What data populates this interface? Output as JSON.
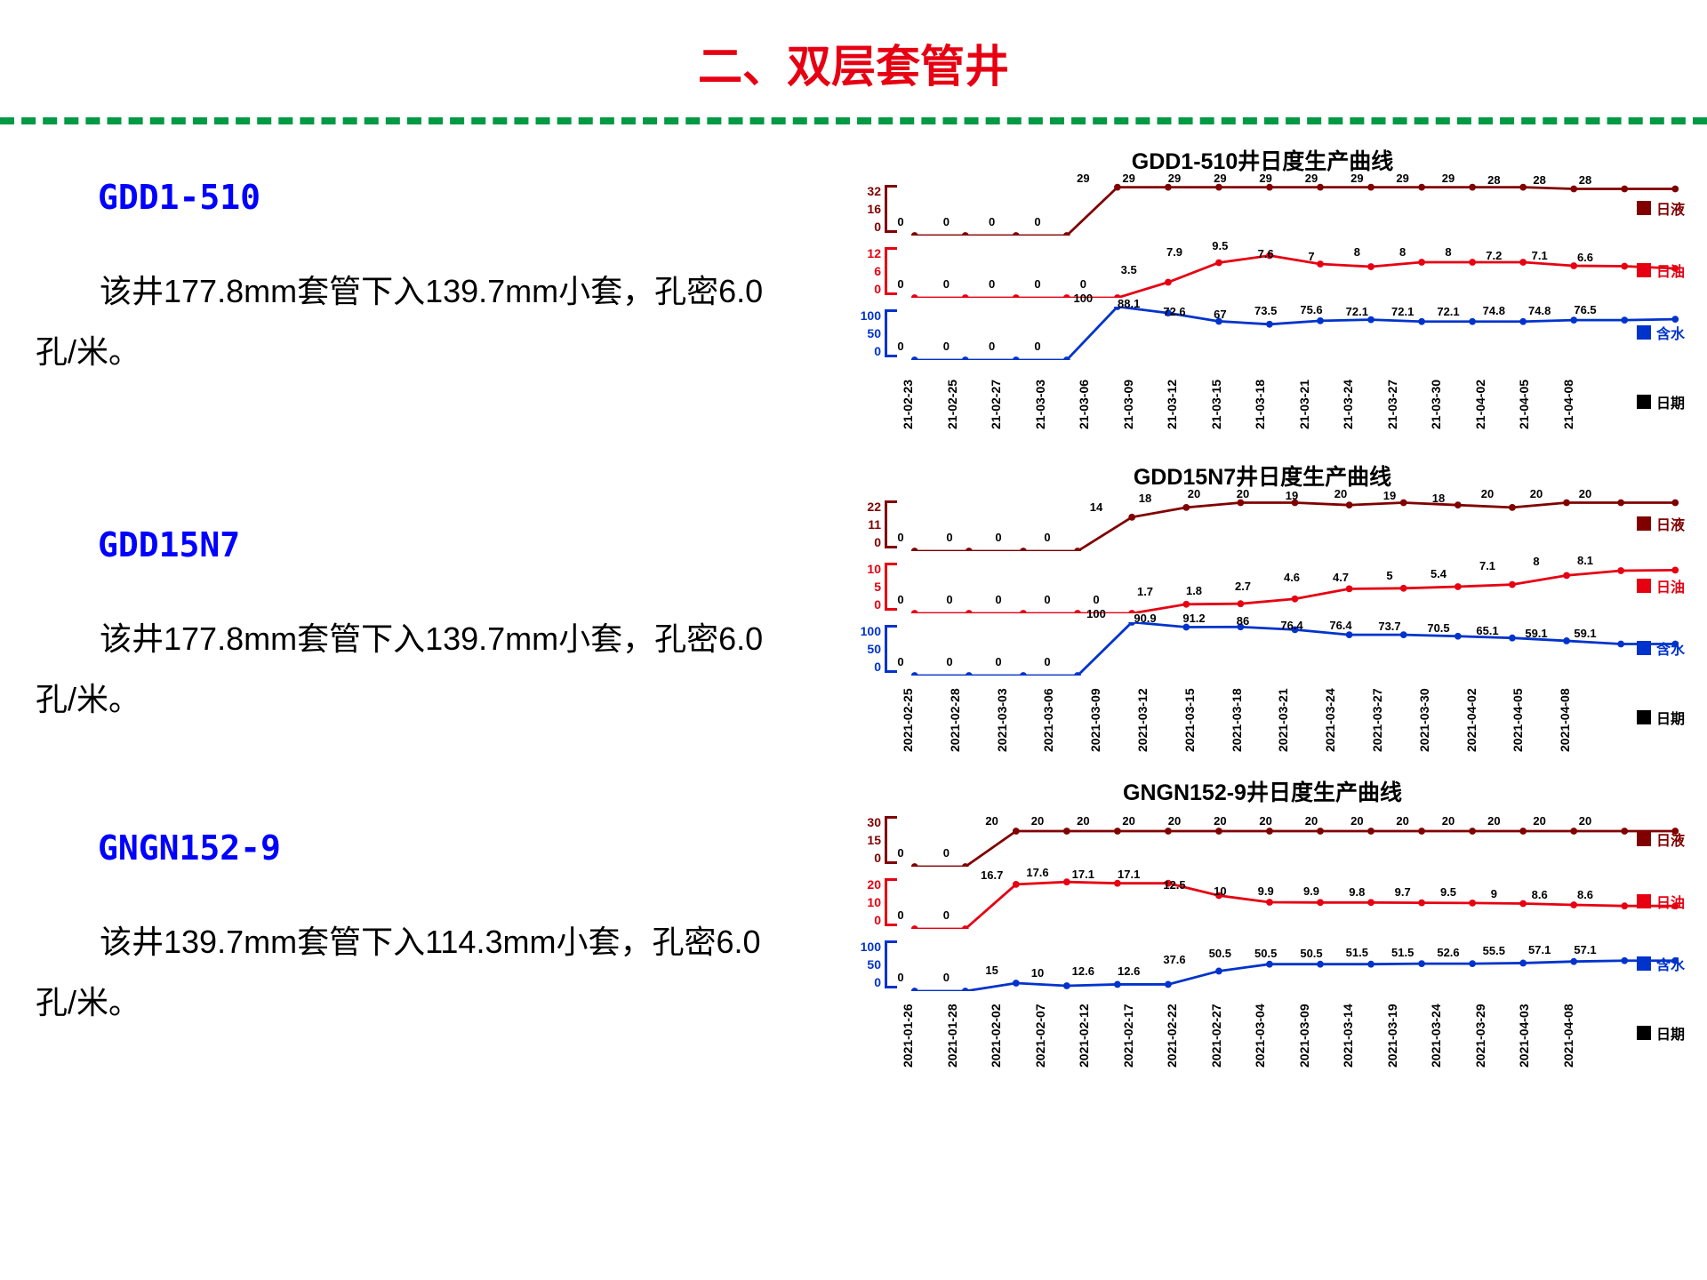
{
  "page": {
    "title": "二、双层套管井",
    "title_color": "#e60012",
    "divider_color": "#009944"
  },
  "wells": [
    {
      "id": "GDD1-510",
      "desc": "该井177.8mm套管下入139.7mm小套，孔密6.0孔/米。"
    },
    {
      "id": "GDD15N7",
      "desc": "该井177.8mm套管下入139.7mm小套，孔密6.0孔/米。"
    },
    {
      "id": "GNGN152-9",
      "desc": "该井139.7mm套管下入114.3mm小套，孔密6.0孔/米。"
    }
  ],
  "legend": {
    "liquid": "日液",
    "oil": "日油",
    "water": "含水",
    "date": "日期"
  },
  "colors": {
    "liquid": "#800000",
    "oil": "#e60012",
    "water": "#0033cc",
    "date": "#000000",
    "well_id": "#0000ff"
  },
  "charts": [
    {
      "title": "GDD1-510井日度生产曲线",
      "dates": [
        "21-02-23",
        "21-02-25",
        "21-02-27",
        "21-03-03",
        "21-03-06",
        "21-03-09",
        "21-03-12",
        "21-03-15",
        "21-03-18",
        "21-03-21",
        "21-03-24",
        "21-03-27",
        "21-03-30",
        "21-04-02",
        "21-04-05",
        "21-04-08"
      ],
      "series": [
        {
          "name": "日液",
          "color": "#800000",
          "ylim": [
            0,
            32
          ],
          "yticks": [
            0,
            16,
            32
          ],
          "values": [
            0,
            0,
            0,
            0,
            29,
            29,
            29,
            29,
            29,
            29,
            29,
            29,
            29,
            28,
            28,
            28
          ]
        },
        {
          "name": "日油",
          "color": "#e60012",
          "ylim": [
            0,
            12
          ],
          "yticks": [
            0,
            6,
            12
          ],
          "values": [
            0,
            0,
            0,
            0,
            0,
            3.5,
            7.9,
            9.5,
            7.6,
            7,
            8,
            8,
            8,
            7.2,
            7.1,
            6.6
          ]
        },
        {
          "name": "含水",
          "color": "#0033cc",
          "ylim": [
            0,
            100
          ],
          "yticks": [
            0,
            50,
            100
          ],
          "values": [
            0,
            0,
            0,
            0,
            100,
            88.1,
            72.6,
            67,
            73.5,
            75.6,
            72.1,
            72.1,
            72.1,
            74.8,
            74.8,
            76.5
          ]
        }
      ]
    },
    {
      "title": "GDD15N7井日度生产曲线",
      "dates": [
        "2021-02-25",
        "2021-02-28",
        "2021-03-03",
        "2021-03-06",
        "2021-03-09",
        "2021-03-12",
        "2021-03-15",
        "2021-03-18",
        "2021-03-21",
        "2021-03-24",
        "2021-03-27",
        "2021-03-30",
        "2021-04-02",
        "2021-04-05",
        "2021-04-08"
      ],
      "series": [
        {
          "name": "日液",
          "color": "#800000",
          "ylim": [
            0,
            22
          ],
          "yticks": [
            0,
            11,
            22
          ],
          "values": [
            0,
            0,
            0,
            0,
            14,
            18,
            20,
            20,
            19,
            20,
            19,
            18,
            20,
            20,
            20
          ]
        },
        {
          "name": "日油",
          "color": "#e60012",
          "ylim": [
            0,
            10
          ],
          "yticks": [
            0,
            5,
            10
          ],
          "values": [
            0,
            0,
            0,
            0,
            0,
            1.7,
            1.8,
            2.7,
            4.6,
            4.7,
            5,
            5.4,
            7.1,
            8,
            8.1
          ]
        },
        {
          "name": "含水",
          "color": "#0033cc",
          "ylim": [
            0,
            100
          ],
          "yticks": [
            0,
            50,
            100
          ],
          "values": [
            0,
            0,
            0,
            0,
            100,
            90.9,
            91.2,
            86,
            76.4,
            76.4,
            73.7,
            70.5,
            65.1,
            59.1,
            59.1
          ]
        }
      ]
    },
    {
      "title": "GNGN152-9井日度生产曲线",
      "dates": [
        "2021-01-26",
        "2021-01-28",
        "2021-02-02",
        "2021-02-07",
        "2021-02-12",
        "2021-02-17",
        "2021-02-22",
        "2021-02-27",
        "2021-03-04",
        "2021-03-09",
        "2021-03-14",
        "2021-03-19",
        "2021-03-24",
        "2021-03-29",
        "2021-04-03",
        "2021-04-08"
      ],
      "series": [
        {
          "name": "日液",
          "color": "#800000",
          "ylim": [
            0,
            30
          ],
          "yticks": [
            0,
            15,
            30
          ],
          "values": [
            0,
            0,
            20,
            20,
            20,
            20,
            20,
            20,
            20,
            20,
            20,
            20,
            20,
            20,
            20,
            20
          ]
        },
        {
          "name": "日油",
          "color": "#e60012",
          "ylim": [
            0,
            20
          ],
          "yticks": [
            0,
            10,
            20
          ],
          "values": [
            0,
            0,
            16.7,
            17.6,
            17.1,
            17.1,
            12.5,
            10,
            9.9,
            9.9,
            9.8,
            9.7,
            9.5,
            9,
            8.6,
            8.6
          ]
        },
        {
          "name": "含水",
          "color": "#0033cc",
          "ylim": [
            0,
            100
          ],
          "yticks": [
            0,
            50,
            100
          ],
          "values": [
            0,
            0,
            15,
            10,
            12.6,
            12.6,
            37.6,
            50.5,
            50.5,
            50.5,
            51.5,
            51.5,
            52.6,
            55.5,
            57.1,
            57.1
          ]
        }
      ]
    }
  ]
}
